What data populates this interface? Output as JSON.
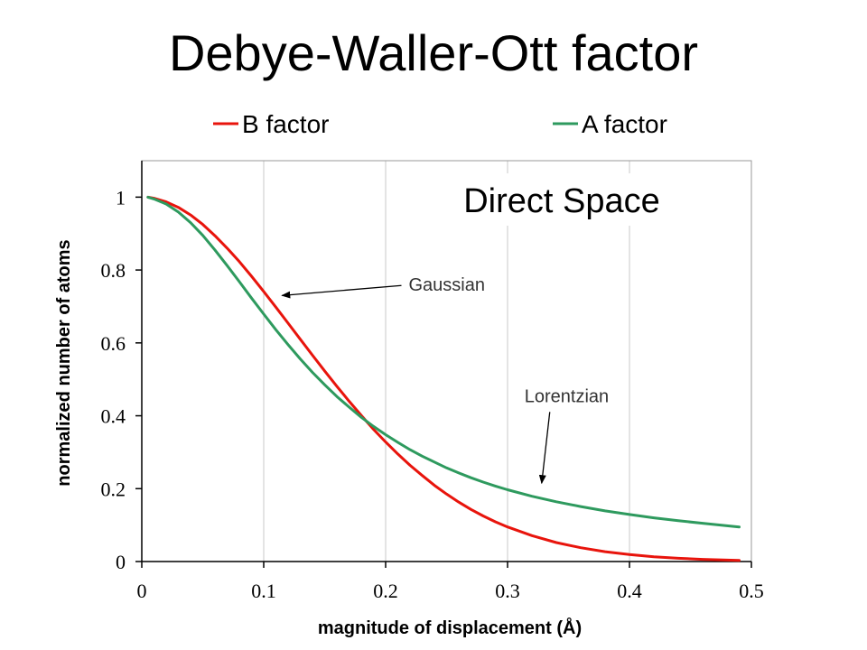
{
  "chart_data": {
    "type": "line",
    "title": "Debye-Waller-Ott factor",
    "xlabel": "magnitude of displacement (Å)",
    "ylabel": "normalized number of atoms",
    "xlim": [
      0,
      0.5
    ],
    "ylim": [
      0,
      1.1
    ],
    "xticks": [
      "0",
      "0.1",
      "0.2",
      "0.3",
      "0.4",
      "0.5"
    ],
    "yticks": [
      "0",
      "0.2",
      "0.4",
      "0.6",
      "0.8",
      "1"
    ],
    "grid": "vertical",
    "legend_position": "top",
    "series": [
      {
        "name": "B factor",
        "color": "#e8140c",
        "x": [
          0.005,
          0.01,
          0.02,
          0.03,
          0.04,
          0.05,
          0.06,
          0.07,
          0.08,
          0.09,
          0.1,
          0.11,
          0.12,
          0.13,
          0.14,
          0.15,
          0.16,
          0.17,
          0.18,
          0.19,
          0.2,
          0.21,
          0.22,
          0.23,
          0.24,
          0.25,
          0.26,
          0.27,
          0.28,
          0.29,
          0.3,
          0.32,
          0.34,
          0.36,
          0.38,
          0.4,
          0.42,
          0.44,
          0.46,
          0.49
        ],
        "y": [
          1.0,
          0.997,
          0.987,
          0.972,
          0.951,
          0.925,
          0.894,
          0.86,
          0.823,
          0.783,
          0.741,
          0.698,
          0.654,
          0.61,
          0.566,
          0.523,
          0.481,
          0.44,
          0.401,
          0.363,
          0.328,
          0.295,
          0.264,
          0.236,
          0.209,
          0.185,
          0.163,
          0.143,
          0.125,
          0.109,
          0.095,
          0.071,
          0.052,
          0.038,
          0.027,
          0.019,
          0.013,
          0.009,
          0.006,
          0.003
        ]
      },
      {
        "name": "A factor",
        "color": "#2e9a5e",
        "x": [
          0.005,
          0.01,
          0.02,
          0.03,
          0.04,
          0.05,
          0.06,
          0.07,
          0.08,
          0.09,
          0.1,
          0.11,
          0.12,
          0.13,
          0.14,
          0.15,
          0.16,
          0.17,
          0.18,
          0.19,
          0.2,
          0.21,
          0.22,
          0.23,
          0.24,
          0.25,
          0.26,
          0.27,
          0.28,
          0.29,
          0.3,
          0.32,
          0.34,
          0.36,
          0.38,
          0.4,
          0.42,
          0.44,
          0.46,
          0.49
        ],
        "y": [
          1.0,
          0.995,
          0.981,
          0.959,
          0.93,
          0.895,
          0.855,
          0.812,
          0.768,
          0.723,
          0.679,
          0.636,
          0.595,
          0.556,
          0.519,
          0.485,
          0.453,
          0.424,
          0.396,
          0.371,
          0.348,
          0.327,
          0.307,
          0.289,
          0.273,
          0.257,
          0.243,
          0.23,
          0.218,
          0.207,
          0.197,
          0.179,
          0.164,
          0.151,
          0.139,
          0.129,
          0.12,
          0.112,
          0.105,
          0.095
        ]
      }
    ],
    "annotations": [
      {
        "text": "Gaussian",
        "x": 0.21,
        "y": 0.76,
        "arrow_to": [
          0.115,
          0.73
        ]
      },
      {
        "text": "Lorentzian",
        "x": 0.305,
        "y": 0.455,
        "arrow_to": [
          0.328,
          0.215
        ]
      }
    ],
    "inset_label": "Direct Space"
  }
}
